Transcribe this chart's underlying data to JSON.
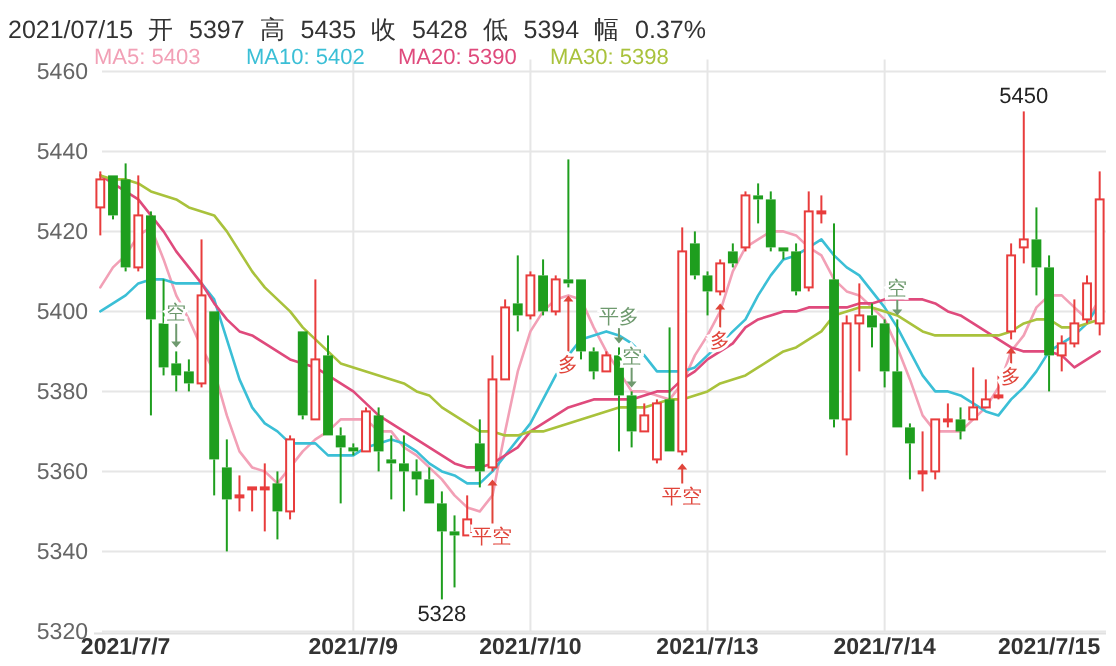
{
  "chart_data": {
    "type": "candlestick",
    "title": "2021/07/15 开 5397 高 5435 收 5428 低 5394 幅 0.37%",
    "categories": [
      null,
      null,
      "2021/7/7",
      null,
      null,
      null,
      null,
      null,
      null,
      null,
      null,
      null,
      null,
      null,
      null,
      null,
      null,
      null,
      null,
      null,
      "2021/7/9",
      null,
      null,
      null,
      null,
      null,
      null,
      null,
      null,
      null,
      null,
      null,
      null,
      null,
      "2021/7/10",
      null,
      null,
      null,
      null,
      null,
      null,
      null,
      null,
      null,
      null,
      null,
      null,
      null,
      "2021/7/13",
      null,
      null,
      null,
      null,
      null,
      null,
      null,
      null,
      null,
      null,
      null,
      null,
      null,
      "2021/7/14",
      null,
      null,
      null,
      null,
      null,
      null,
      null,
      null,
      null,
      null,
      null,
      null,
      "2021/7/15",
      null,
      null,
      null,
      null
    ],
    "ohlc": [
      [
        5426,
        5435,
        5419,
        5433
      ],
      [
        5434,
        5434,
        5423,
        5424
      ],
      [
        5433,
        5437,
        5410,
        5411
      ],
      [
        5411,
        5434,
        5410,
        5424
      ],
      [
        5424,
        5425,
        5374,
        5398
      ],
      [
        5397,
        5408,
        5384,
        5386
      ],
      [
        5387,
        5390,
        5380,
        5384
      ],
      [
        5385,
        5388,
        5380,
        5382
      ],
      [
        5382,
        5418,
        5381,
        5404
      ],
      [
        5400,
        5400,
        5354,
        5363
      ],
      [
        5361,
        5368,
        5340,
        5353
      ],
      [
        5354,
        5359,
        5350,
        5354
      ],
      [
        5356,
        5356,
        5350,
        5356
      ],
      [
        5356,
        5362,
        5345,
        5356
      ],
      [
        5357,
        5360,
        5343,
        5350
      ],
      [
        5350,
        5369,
        5348,
        5368
      ],
      [
        5395,
        5395,
        5373,
        5374
      ],
      [
        5373,
        5408,
        5373,
        5388
      ],
      [
        5389,
        5394,
        5369,
        5369
      ],
      [
        5369,
        5371,
        5352,
        5366
      ],
      [
        5366,
        5367,
        5364,
        5365
      ],
      [
        5365,
        5376,
        5365,
        5375
      ],
      [
        5374,
        5376,
        5360,
        5365
      ],
      [
        5363,
        5369,
        5353,
        5362
      ],
      [
        5362,
        5369,
        5350,
        5360
      ],
      [
        5360,
        5363,
        5354,
        5358
      ],
      [
        5358,
        5361,
        5352,
        5352
      ],
      [
        5352,
        5355,
        5328,
        5345
      ],
      [
        5345,
        5349,
        5331,
        5344
      ],
      [
        5344,
        5354,
        5344,
        5348
      ],
      [
        5367,
        5373,
        5356,
        5360
      ],
      [
        5361,
        5389,
        5360,
        5383
      ],
      [
        5383,
        5403,
        5383,
        5401
      ],
      [
        5402,
        5414,
        5395,
        5399
      ],
      [
        5399,
        5410,
        5398,
        5409
      ],
      [
        5409,
        5413,
        5399,
        5400
      ],
      [
        5400,
        5409,
        5399,
        5408
      ],
      [
        5408,
        5438,
        5406,
        5407
      ],
      [
        5408,
        5408,
        5388,
        5390
      ],
      [
        5390,
        5391,
        5383,
        5385
      ],
      [
        5385,
        5390,
        5385,
        5389
      ],
      [
        5389,
        5391,
        5365,
        5379
      ],
      [
        5379,
        5380,
        5366,
        5370
      ],
      [
        5370,
        5377,
        5370,
        5374
      ],
      [
        5363,
        5378,
        5362,
        5377
      ],
      [
        5378,
        5396,
        5365,
        5365
      ],
      [
        5365,
        5421,
        5364,
        5415
      ],
      [
        5417,
        5420,
        5408,
        5409
      ],
      [
        5409,
        5410,
        5399,
        5405
      ],
      [
        5405,
        5413,
        5404,
        5412
      ],
      [
        5415,
        5417,
        5411,
        5412
      ],
      [
        5416,
        5430,
        5415,
        5429
      ],
      [
        5429,
        5432,
        5422,
        5428
      ],
      [
        5428,
        5430,
        5415,
        5416
      ],
      [
        5416,
        5416,
        5413,
        5415
      ],
      [
        5415,
        5417,
        5404,
        5405
      ],
      [
        5406,
        5430,
        5405,
        5425
      ],
      [
        5425,
        5429,
        5422,
        5425
      ],
      [
        5408,
        5422,
        5371,
        5373
      ],
      [
        5373,
        5399,
        5364,
        5397
      ],
      [
        5397,
        5407,
        5385,
        5399
      ],
      [
        5399,
        5402,
        5391,
        5396
      ],
      [
        5397,
        5398,
        5381,
        5385
      ],
      [
        5385,
        5398,
        5371,
        5371
      ],
      [
        5371,
        5372,
        5358,
        5367
      ],
      [
        5360,
        5370,
        5355,
        5360
      ],
      [
        5360,
        5373,
        5358,
        5373
      ],
      [
        5373,
        5377,
        5371,
        5373
      ],
      [
        5373,
        5376,
        5368,
        5370
      ],
      [
        5373,
        5386,
        5373,
        5376
      ],
      [
        5376,
        5383,
        5376,
        5378
      ],
      [
        5379,
        5384,
        5378,
        5379
      ],
      [
        5395,
        5417,
        5393,
        5414
      ],
      [
        5416,
        5450,
        5412,
        5418
      ],
      [
        5418,
        5426,
        5404,
        5411
      ],
      [
        5411,
        5414,
        5380,
        5389
      ],
      [
        5389,
        5394,
        5385,
        5392
      ],
      [
        5392,
        5403,
        5391,
        5397
      ],
      [
        5398,
        5409,
        5397,
        5407
      ],
      [
        5397,
        5435,
        5394,
        5428
      ]
    ],
    "colors": [
      "#e83c3c",
      "#1e9e1e",
      "#1e9e1e",
      "#e83c3c",
      "#1e9e1e",
      "#1e9e1e",
      "#1e9e1e",
      "#1e9e1e",
      "#e83c3c",
      "#1e9e1e",
      "#1e9e1e",
      "#e83c3c",
      "#e83c3c",
      "#e83c3c",
      "#1e9e1e",
      "#e83c3c",
      "#1e9e1e",
      "#e83c3c",
      "#1e9e1e",
      "#1e9e1e",
      "#1e9e1e",
      "#e83c3c",
      "#1e9e1e",
      "#1e9e1e",
      "#1e9e1e",
      "#1e9e1e",
      "#1e9e1e",
      "#1e9e1e",
      "#1e9e1e",
      "#e83c3c",
      "#1e9e1e",
      "#e83c3c",
      "#e83c3c",
      "#1e9e1e",
      "#e83c3c",
      "#1e9e1e",
      "#e83c3c",
      "#1e9e1e",
      "#1e9e1e",
      "#1e9e1e",
      "#e83c3c",
      "#1e9e1e",
      "#1e9e1e",
      "#e83c3c",
      "#e83c3c",
      "#1e9e1e",
      "#e83c3c",
      "#1e9e1e",
      "#1e9e1e",
      "#e83c3c",
      "#1e9e1e",
      "#e83c3c",
      "#1e9e1e",
      "#1e9e1e",
      "#1e9e1e",
      "#1e9e1e",
      "#e83c3c",
      "#e83c3c",
      "#1e9e1e",
      "#e83c3c",
      "#e83c3c",
      "#1e9e1e",
      "#1e9e1e",
      "#1e9e1e",
      "#1e9e1e",
      "#e83c3c",
      "#e83c3c",
      "#e83c3c",
      "#1e9e1e",
      "#e83c3c",
      "#e83c3c",
      "#e83c3c",
      "#e83c3c",
      "#e83c3c",
      "#1e9e1e",
      "#1e9e1e",
      "#e83c3c",
      "#e83c3c",
      "#e83c3c",
      "#e83c3c"
    ],
    "series": [
      {
        "type": "line",
        "name": "MA5: 5403",
        "color": "#f2a0b6",
        "values": [
          5406,
          5411,
          5414,
          5419,
          5421,
          5413,
          5404,
          5398,
          5391,
          5385,
          5374,
          5365,
          5361,
          5360,
          5357,
          5361,
          5365,
          5368,
          5370,
          5373,
          5373,
          5373,
          5370,
          5370,
          5366,
          5364,
          5361,
          5358,
          5354,
          5351,
          5350,
          5354,
          5370,
          5385,
          5395,
          5400,
          5403,
          5404,
          5403,
          5396,
          5390,
          5385,
          5380,
          5380,
          5379,
          5378,
          5382,
          5389,
          5394,
          5400,
          5410,
          5416,
          5418,
          5420,
          5420,
          5419,
          5416,
          5414,
          5408,
          5405,
          5404,
          5401,
          5398,
          5391,
          5383,
          5374,
          5370,
          5370,
          5370,
          5373,
          5376,
          5381,
          5390,
          5394,
          5401,
          5404,
          5404,
          5401,
          5398,
          5403
        ]
      },
      {
        "type": "line",
        "name": "MA10: 5402",
        "color": "#3bbfd6",
        "values": [
          5400,
          5402,
          5404,
          5407,
          5408,
          5408,
          5407,
          5407,
          5407,
          5403,
          5393,
          5383,
          5376,
          5372,
          5370,
          5367,
          5367,
          5367,
          5364,
          5364,
          5364,
          5366,
          5367,
          5368,
          5367,
          5365,
          5362,
          5360,
          5359,
          5357,
          5357,
          5360,
          5364,
          5368,
          5372,
          5378,
          5384,
          5389,
          5393,
          5394,
          5395,
          5394,
          5392,
          5389,
          5385,
          5385,
          5385,
          5386,
          5389,
          5392,
          5395,
          5398,
          5404,
          5409,
          5413,
          5414,
          5416,
          5418,
          5414,
          5411,
          5409,
          5405,
          5401,
          5396,
          5390,
          5384,
          5380,
          5380,
          5379,
          5377,
          5375,
          5374,
          5378,
          5381,
          5385,
          5390,
          5392,
          5394,
          5397,
          5402
        ]
      },
      {
        "type": "line",
        "name": "MA20: 5390",
        "color": "#df4a7c",
        "values": [
          5434,
          5432,
          5430,
          5428,
          5424,
          5420,
          5415,
          5411,
          5407,
          5402,
          5398,
          5395,
          5394,
          5392,
          5390,
          5388,
          5387,
          5386,
          5384,
          5382,
          5380,
          5377,
          5374,
          5372,
          5370,
          5368,
          5366,
          5364,
          5362,
          5361,
          5361,
          5362,
          5364,
          5366,
          5370,
          5372,
          5374,
          5376,
          5377,
          5378,
          5378,
          5378,
          5378,
          5379,
          5380,
          5380,
          5383,
          5385,
          5388,
          5390,
          5392,
          5396,
          5398,
          5399,
          5400,
          5400,
          5401,
          5401,
          5401,
          5401,
          5402,
          5402,
          5403,
          5403,
          5403,
          5403,
          5402,
          5400,
          5399,
          5397,
          5395,
          5393,
          5391,
          5390,
          5390,
          5390,
          5389,
          5386,
          5388,
          5390
        ]
      },
      {
        "type": "line",
        "name": "MA30: 5398",
        "color": "#a9c23c",
        "values": [
          5434,
          5433,
          5433,
          5432,
          5430,
          5429,
          5428,
          5426,
          5425,
          5424,
          5420,
          5415,
          5410,
          5406,
          5403,
          5400,
          5396,
          5393,
          5390,
          5387,
          5386,
          5385,
          5384,
          5383,
          5382,
          5380,
          5379,
          5376,
          5374,
          5372,
          5370,
          5370,
          5369,
          5369,
          5370,
          5370,
          5371,
          5372,
          5373,
          5374,
          5375,
          5376,
          5376,
          5376,
          5377,
          5378,
          5378,
          5379,
          5380,
          5382,
          5383,
          5384,
          5386,
          5388,
          5390,
          5391,
          5393,
          5395,
          5399,
          5400,
          5401,
          5401,
          5400,
          5399,
          5397,
          5395,
          5394,
          5394,
          5394,
          5394,
          5394,
          5394,
          5395,
          5397,
          5398,
          5398,
          5396,
          5396,
          5397,
          5398
        ]
      }
    ],
    "ylim": [
      5320,
      5460
    ],
    "yticks": [
      5320,
      5340,
      5360,
      5380,
      5400,
      5420,
      5440,
      5460
    ],
    "grid": true,
    "legend": "top left",
    "annotations": [
      {
        "text": "5450",
        "y": 5450
      },
      {
        "text": "5328",
        "y": 5328
      },
      "空",
      "平空",
      "多",
      "平多",
      "空",
      "平空",
      "多",
      "空",
      "多"
    ]
  }
}
